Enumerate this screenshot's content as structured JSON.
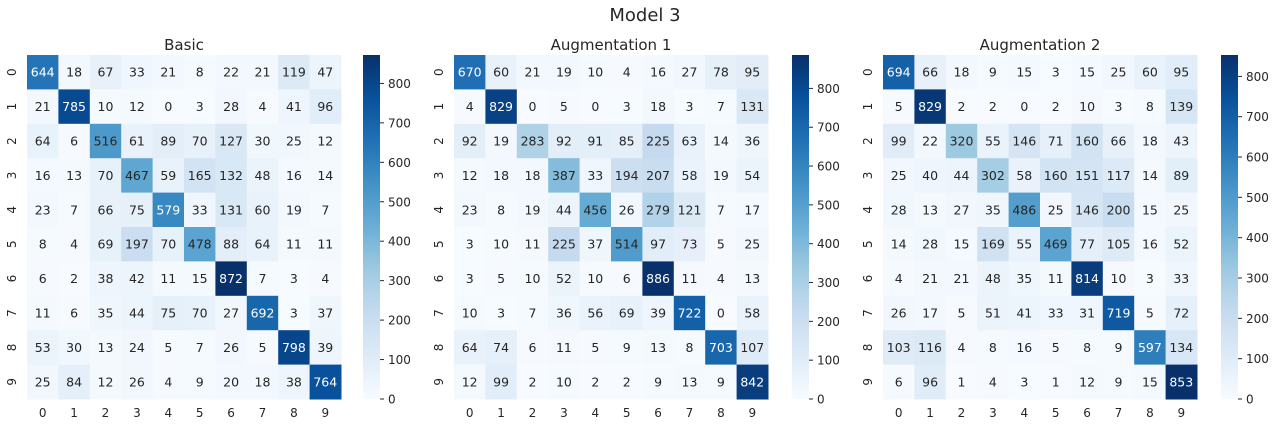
{
  "chart_data": {
    "title": "Model 3",
    "type": "heatmap",
    "colormap": "Blues",
    "charts": [
      {
        "title": "Basic",
        "x_ticks": [
          "0",
          "1",
          "2",
          "3",
          "4",
          "5",
          "6",
          "7",
          "8",
          "9"
        ],
        "y_ticks": [
          "0",
          "1",
          "2",
          "3",
          "4",
          "5",
          "6",
          "7",
          "8",
          "9"
        ],
        "matrix": [
          [
            644,
            18,
            67,
            33,
            21,
            8,
            22,
            21,
            119,
            47
          ],
          [
            21,
            785,
            10,
            12,
            0,
            3,
            28,
            4,
            41,
            96
          ],
          [
            64,
            6,
            516,
            61,
            89,
            70,
            127,
            30,
            25,
            12
          ],
          [
            16,
            13,
            70,
            467,
            59,
            165,
            132,
            48,
            16,
            14
          ],
          [
            23,
            7,
            66,
            75,
            579,
            33,
            131,
            60,
            19,
            7
          ],
          [
            8,
            4,
            69,
            197,
            70,
            478,
            88,
            64,
            11,
            11
          ],
          [
            6,
            2,
            38,
            42,
            11,
            15,
            872,
            7,
            3,
            4
          ],
          [
            11,
            6,
            35,
            44,
            75,
            70,
            27,
            692,
            3,
            37
          ],
          [
            53,
            30,
            13,
            24,
            5,
            7,
            26,
            5,
            798,
            39
          ],
          [
            25,
            84,
            12,
            26,
            4,
            9,
            20,
            18,
            38,
            764
          ]
        ],
        "colorbar": {
          "vmin": 0,
          "vmax": 872,
          "ticks": [
            0,
            100,
            200,
            300,
            400,
            500,
            600,
            700,
            800
          ]
        }
      },
      {
        "title": "Augmentation 1",
        "x_ticks": [
          "0",
          "1",
          "2",
          "3",
          "4",
          "5",
          "6",
          "7",
          "8",
          "9"
        ],
        "y_ticks": [
          "0",
          "1",
          "2",
          "3",
          "4",
          "5",
          "6",
          "7",
          "8",
          "9"
        ],
        "matrix": [
          [
            670,
            60,
            21,
            19,
            10,
            4,
            16,
            27,
            78,
            95
          ],
          [
            4,
            829,
            0,
            5,
            0,
            3,
            18,
            3,
            7,
            131
          ],
          [
            92,
            19,
            283,
            92,
            91,
            85,
            225,
            63,
            14,
            36
          ],
          [
            12,
            18,
            18,
            387,
            33,
            194,
            207,
            58,
            19,
            54
          ],
          [
            23,
            8,
            19,
            44,
            456,
            26,
            279,
            121,
            7,
            17
          ],
          [
            3,
            10,
            11,
            225,
            37,
            514,
            97,
            73,
            5,
            25
          ],
          [
            3,
            5,
            10,
            52,
            10,
            6,
            886,
            11,
            4,
            13
          ],
          [
            10,
            3,
            7,
            36,
            56,
            69,
            39,
            722,
            0,
            58
          ],
          [
            64,
            74,
            6,
            11,
            5,
            9,
            13,
            8,
            703,
            107
          ],
          [
            12,
            99,
            2,
            10,
            2,
            2,
            9,
            13,
            9,
            842
          ]
        ],
        "colorbar": {
          "vmin": 0,
          "vmax": 886,
          "ticks": [
            0,
            100,
            200,
            300,
            400,
            500,
            600,
            700,
            800
          ]
        }
      },
      {
        "title": "Augmentation 2",
        "x_ticks": [
          "0",
          "1",
          "2",
          "3",
          "4",
          "5",
          "6",
          "7",
          "8",
          "9"
        ],
        "y_ticks": [
          "0",
          "1",
          "2",
          "3",
          "4",
          "5",
          "6",
          "7",
          "8",
          "9"
        ],
        "matrix": [
          [
            694,
            66,
            18,
            9,
            15,
            3,
            15,
            25,
            60,
            95
          ],
          [
            5,
            829,
            2,
            2,
            0,
            2,
            10,
            3,
            8,
            139
          ],
          [
            99,
            22,
            320,
            55,
            146,
            71,
            160,
            66,
            18,
            43
          ],
          [
            25,
            40,
            44,
            302,
            58,
            160,
            151,
            117,
            14,
            89
          ],
          [
            28,
            13,
            27,
            35,
            486,
            25,
            146,
            200,
            15,
            25
          ],
          [
            14,
            28,
            15,
            169,
            55,
            469,
            77,
            105,
            16,
            52
          ],
          [
            4,
            21,
            21,
            48,
            35,
            11,
            814,
            10,
            3,
            33
          ],
          [
            26,
            17,
            5,
            51,
            41,
            33,
            31,
            719,
            5,
            72
          ],
          [
            103,
            116,
            4,
            8,
            16,
            5,
            8,
            9,
            597,
            134
          ],
          [
            6,
            96,
            1,
            4,
            3,
            1,
            12,
            9,
            15,
            853
          ]
        ],
        "colorbar": {
          "vmin": 0,
          "vmax": 853,
          "ticks": [
            0,
            100,
            200,
            300,
            400,
            500,
            600,
            700,
            800
          ]
        }
      }
    ]
  }
}
